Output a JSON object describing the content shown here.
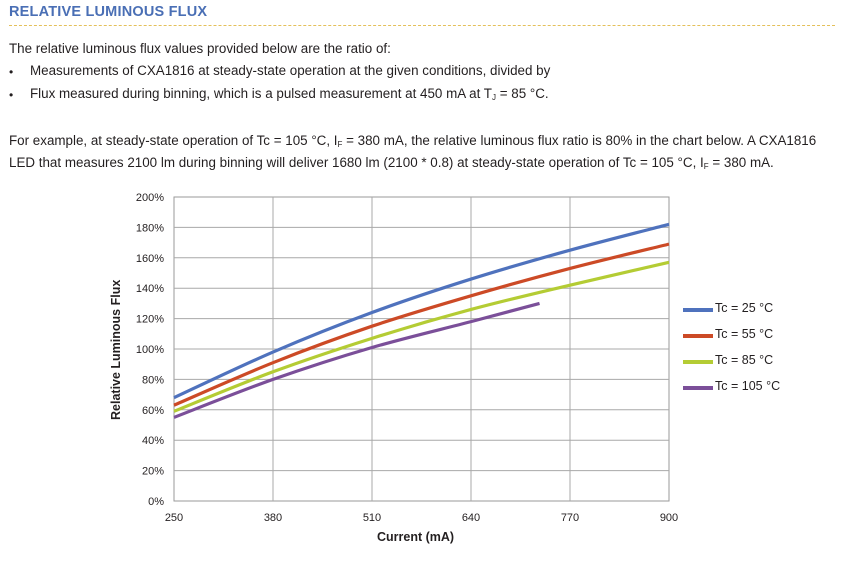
{
  "section": {
    "title": "RELATIVE LUMINOUS FLUX"
  },
  "intro": "The relative luminous flux values provided below are the ratio of:",
  "bullets": {
    "b1": "Measurements of CXA1816 at steady-state operation at the given conditions, divided by",
    "b2_pre": "Flux measured during binning, which is a pulsed measurement at 450 mA at T",
    "b2_sub": "J",
    "b2_post": " = 85 °C."
  },
  "example": {
    "l1_pre": "For example, at steady-state operation of Tc = 105 °C, I",
    "l1_sub": "F",
    "l1_post": " = 380 mA, the relative luminous flux ratio is 80% in the chart below. A CXA1816",
    "l2_pre": "LED that measures 2100 lm during binning will deliver 1680 lm (2100 * 0.8) at steady-state operation of Tc = 105 °C, I",
    "l2_sub": "F",
    "l2_post": " = 380 mA."
  },
  "chart_data": {
    "type": "line",
    "title": "",
    "xlabel": "Current (mA)",
    "ylabel": "Relative Luminous Flux",
    "xlim": [
      250,
      900
    ],
    "ylim": [
      0,
      200
    ],
    "xticks": [
      250,
      380,
      510,
      640,
      770,
      900
    ],
    "yticks": [
      "0%",
      "20%",
      "40%",
      "60%",
      "80%",
      "100%",
      "120%",
      "140%",
      "160%",
      "180%",
      "200%"
    ],
    "grid": true,
    "legend": "right",
    "series": [
      {
        "name": "Tc = 25 °C",
        "color": "#4f72bd",
        "x": [
          250,
          380,
          510,
          640,
          770,
          900
        ],
        "y": [
          68,
          98,
          124,
          146,
          165,
          182
        ]
      },
      {
        "name": "Tc = 55 °C",
        "color": "#cc4a26",
        "x": [
          250,
          380,
          510,
          640,
          770,
          900
        ],
        "y": [
          63,
          91,
          115,
          135,
          153,
          169
        ]
      },
      {
        "name": "Tc = 85 °C",
        "color": "#b4cc34",
        "x": [
          250,
          380,
          510,
          640,
          770,
          900
        ],
        "y": [
          59,
          85,
          107,
          126,
          142,
          157
        ]
      },
      {
        "name": "Tc = 105 °C",
        "color": "#7b4f99",
        "x": [
          250,
          380,
          510,
          640,
          730
        ],
        "y": [
          55,
          80,
          101,
          118,
          130
        ]
      }
    ]
  }
}
